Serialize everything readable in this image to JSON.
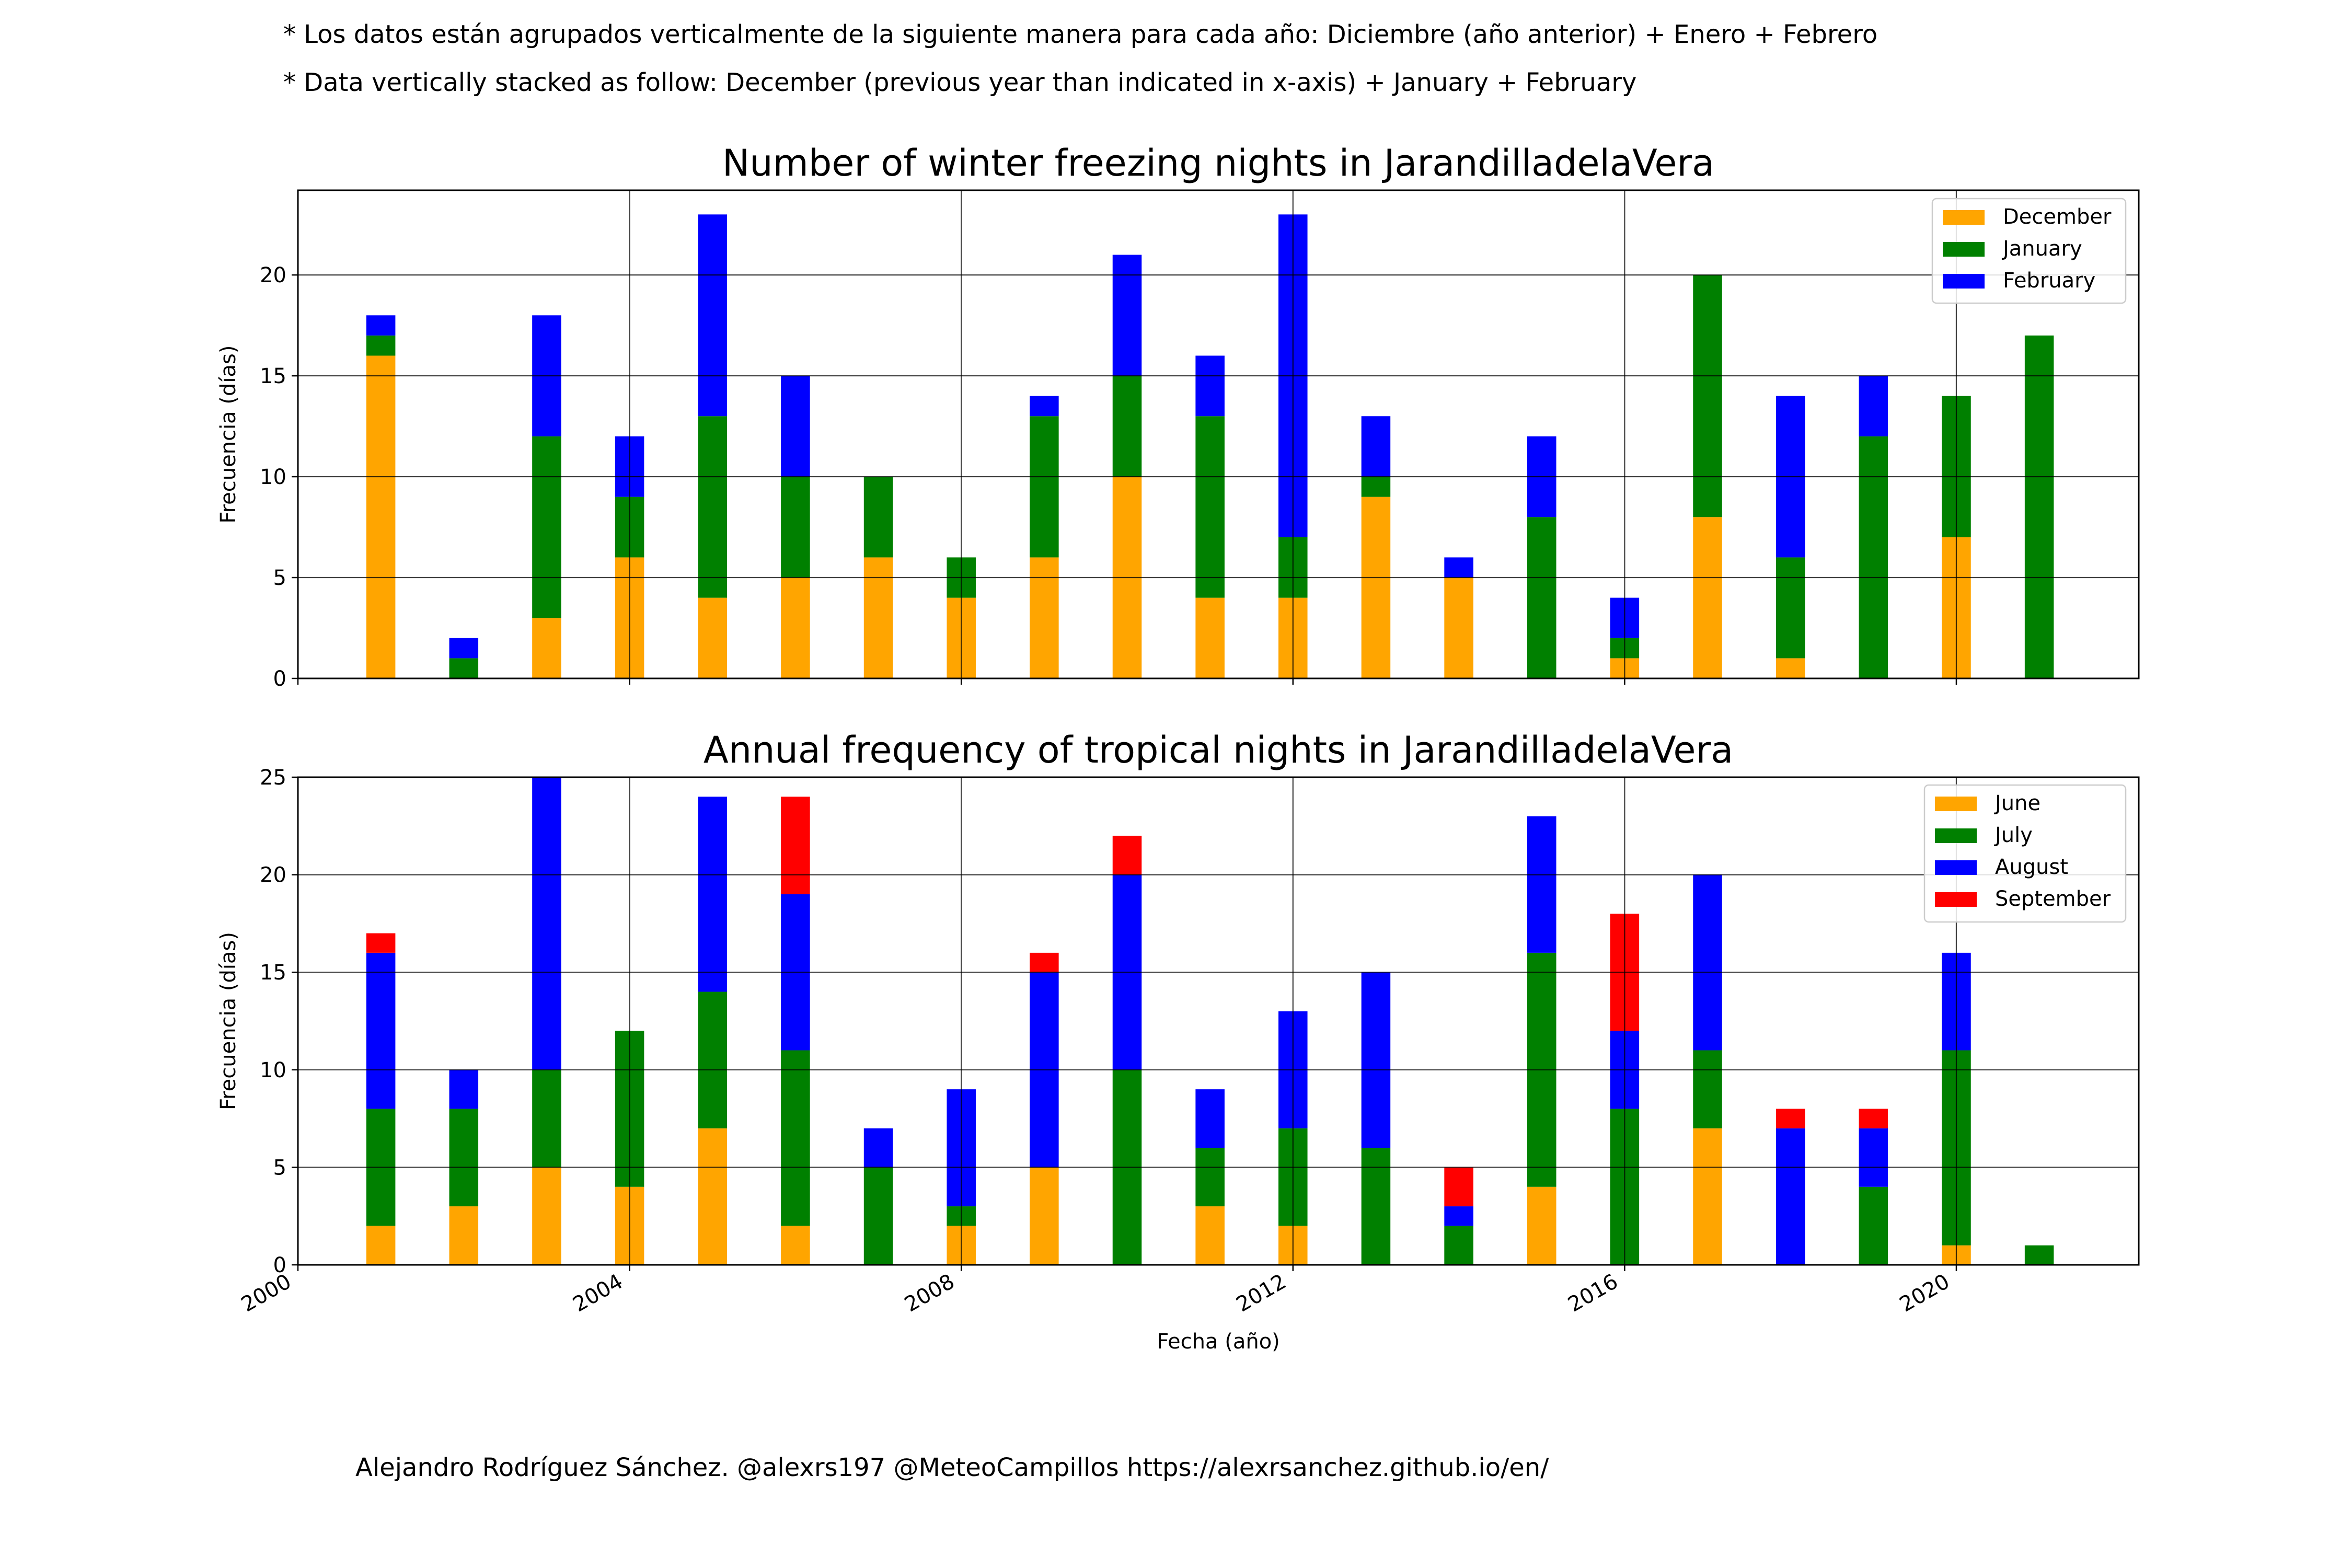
{
  "notes": {
    "line1": "* Los datos están agrupados verticalmente de la siguiente manera para cada año: Diciembre (año anterior) + Enero  + Febrero",
    "line2": "* Data vertically stacked as follow: December (previous year than indicated in x-axis) + January  + February"
  },
  "credit": "Alejandro Rodríguez Sánchez. @alexrs197 @MeteoCampillos   https://alexrsanchez.github.io/en/",
  "chart_data": [
    {
      "type": "bar",
      "stacked": true,
      "title": "Number of winter freezing nights in JarandilladelaVera",
      "ylabel": "Frecuencia (días)",
      "xlabel": "",
      "xlim": [
        2000,
        2022.2
      ],
      "ylim": [
        0,
        24.2
      ],
      "yticks": [
        "0",
        "5",
        "10",
        "15",
        "20"
      ],
      "xticks": [
        "2000",
        "2004",
        "2008",
        "2012",
        "2016",
        "2020"
      ],
      "xtick_labels_visible": false,
      "grid": true,
      "legend": "top-right",
      "x": [
        2001,
        2002,
        2003,
        2004,
        2005,
        2006,
        2007,
        2008,
        2009,
        2010,
        2011,
        2012,
        2013,
        2014,
        2015,
        2016,
        2017,
        2018,
        2019,
        2020,
        2021
      ],
      "series": [
        {
          "name": "December",
          "color": "#ffa500",
          "values": [
            16,
            0,
            3,
            6,
            4,
            5,
            6,
            4,
            6,
            10,
            4,
            4,
            9,
            5,
            0,
            1,
            8,
            1,
            0,
            7,
            0
          ]
        },
        {
          "name": "January",
          "color": "#008000",
          "values": [
            1,
            1,
            9,
            3,
            9,
            5,
            4,
            2,
            7,
            5,
            9,
            3,
            1,
            0,
            8,
            1,
            12,
            5,
            12,
            7,
            17
          ]
        },
        {
          "name": "February",
          "color": "#0000ff",
          "values": [
            1,
            1,
            6,
            3,
            10,
            5,
            0,
            0,
            1,
            6,
            3,
            16,
            3,
            1,
            4,
            2,
            0,
            8,
            3,
            0,
            0
          ]
        }
      ]
    },
    {
      "type": "bar",
      "stacked": true,
      "title": "Annual frequency of tropical nights in JarandilladelaVera",
      "ylabel": "Frecuencia (días)",
      "xlabel": "Fecha (año)",
      "xlim": [
        2000,
        2022.2
      ],
      "ylim": [
        0,
        25
      ],
      "yticks": [
        "0",
        "5",
        "10",
        "15",
        "20",
        "25"
      ],
      "xticks": [
        "2000",
        "2004",
        "2008",
        "2012",
        "2016",
        "2020"
      ],
      "xtick_labels_visible": true,
      "grid": true,
      "legend": "top-right",
      "x": [
        2001,
        2002,
        2003,
        2004,
        2005,
        2006,
        2007,
        2008,
        2009,
        2010,
        2011,
        2012,
        2013,
        2014,
        2015,
        2016,
        2017,
        2018,
        2019,
        2020,
        2021
      ],
      "series": [
        {
          "name": "June",
          "color": "#ffa500",
          "values": [
            2,
            3,
            5,
            4,
            7,
            2,
            0,
            2,
            5,
            0,
            3,
            2,
            0,
            0,
            4,
            0,
            7,
            0,
            0,
            1,
            0
          ]
        },
        {
          "name": "July",
          "color": "#008000",
          "values": [
            6,
            5,
            5,
            8,
            7,
            9,
            5,
            1,
            0,
            10,
            3,
            5,
            6,
            2,
            12,
            8,
            4,
            0,
            4,
            10,
            1
          ]
        },
        {
          "name": "August",
          "color": "#0000ff",
          "values": [
            8,
            2,
            15,
            0,
            10,
            8,
            2,
            6,
            10,
            10,
            3,
            6,
            9,
            1,
            7,
            4,
            9,
            7,
            3,
            5,
            0
          ]
        },
        {
          "name": "September",
          "color": "#ff0000",
          "values": [
            1,
            0,
            0,
            0,
            0,
            5,
            0,
            0,
            1,
            2,
            0,
            0,
            0,
            2,
            0,
            6,
            0,
            1,
            1,
            0,
            0
          ]
        }
      ]
    }
  ]
}
